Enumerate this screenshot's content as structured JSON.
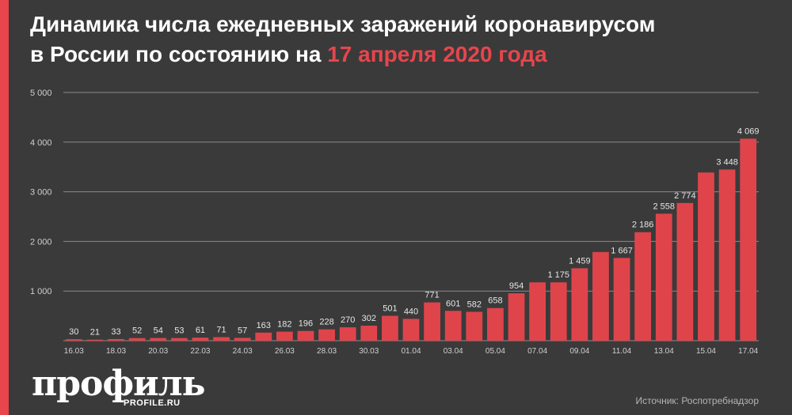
{
  "title": {
    "line1": "Динамика числа ежедневных заражений коронавирусом",
    "line2_prefix": "в России по состоянию на ",
    "line2_date": "17 апреля 2020 года"
  },
  "colors": {
    "background": "#3a3a3a",
    "bar": "#e0444b",
    "accent": "#e8454c",
    "grid": "#8a8a8a",
    "label": "#e6e6e6",
    "axis_text": "#cfcfcf"
  },
  "brand": {
    "logo": "профиль",
    "site": "PROFILE.RU"
  },
  "source": "Источник: Роспотребнадзор",
  "chart_data": {
    "type": "bar",
    "categories": [
      "16.03",
      "17.03",
      "18.03",
      "19.03",
      "20.03",
      "21.03",
      "22.03",
      "23.03",
      "24.03",
      "25.03",
      "26.03",
      "27.03",
      "28.03",
      "29.03",
      "30.03",
      "31.03",
      "01.04",
      "02.04",
      "03.04",
      "04.04",
      "05.04",
      "06.04",
      "07.04",
      "08.04",
      "09.04",
      "10.04",
      "11.04",
      "12.04",
      "13.04",
      "14.04",
      "15.04",
      "16.04",
      "17.04"
    ],
    "tick_labels": [
      "16.03",
      "",
      "18.03",
      "",
      "20.03",
      "",
      "22.03",
      "",
      "24.03",
      "",
      "26.03",
      "",
      "28.03",
      "",
      "30.03",
      "",
      "01.04",
      "",
      "03.04",
      "",
      "05.04",
      "",
      "07.04",
      "",
      "09.04",
      "",
      "11.04",
      "",
      "13.04",
      "",
      "15.04",
      "",
      "17.04"
    ],
    "values": [
      30,
      21,
      33,
      52,
      54,
      53,
      61,
      71,
      57,
      163,
      182,
      196,
      228,
      270,
      302,
      501,
      440,
      771,
      601,
      582,
      658,
      954,
      1175,
      1175,
      1459,
      1786,
      1667,
      2186,
      2558,
      2774,
      3388,
      3448,
      4069
    ],
    "value_labels": [
      "30",
      "21",
      "33",
      "52",
      "54",
      "53",
      "61",
      "71",
      "57",
      "163",
      "182",
      "196",
      "228",
      "270",
      "302",
      "501",
      "440",
      "771",
      "601",
      "582",
      "658",
      "954",
      "",
      "1 175",
      "1 459",
      "",
      "1 667",
      "2 186",
      "2 558",
      "2 774",
      "",
      "3 448",
      "4 069"
    ],
    "ylim": [
      0,
      5000
    ],
    "yticks": [
      1000,
      2000,
      3000,
      4000,
      5000
    ],
    "ytick_labels": [
      "1 000",
      "2 000",
      "3 000",
      "4 000",
      "5 000"
    ],
    "grid": true
  }
}
